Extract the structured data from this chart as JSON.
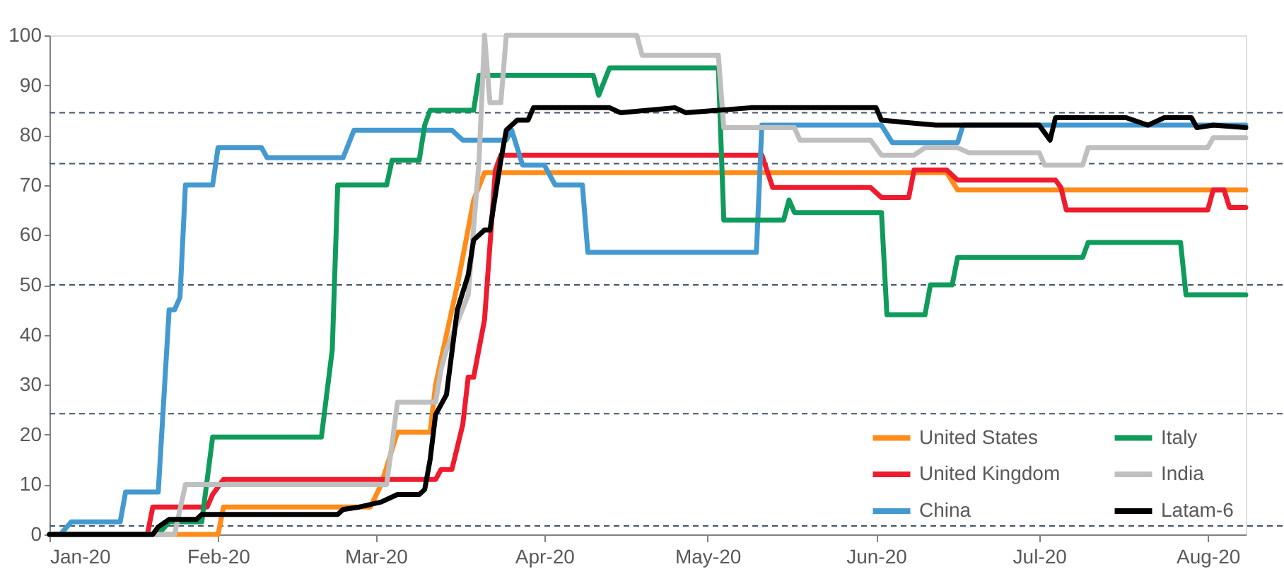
{
  "chart_data": {
    "type": "line",
    "xlim": [
      "2020-01-01",
      "2020-08-08"
    ],
    "ylim": [
      0,
      100
    ],
    "xticks": [
      {
        "value": "2020-01-01",
        "label": "Jan-20"
      },
      {
        "value": "2020-02-01",
        "label": "Feb-20"
      },
      {
        "value": "2020-03-01",
        "label": "Mar-20"
      },
      {
        "value": "2020-04-01",
        "label": "Apr-20"
      },
      {
        "value": "2020-05-01",
        "label": "May-20"
      },
      {
        "value": "2020-06-01",
        "label": "Jun-20"
      },
      {
        "value": "2020-07-01",
        "label": "Jul-20"
      },
      {
        "value": "2020-08-01",
        "label": "Aug-20"
      }
    ],
    "yticks": [
      0,
      10,
      20,
      30,
      40,
      50,
      60,
      70,
      80,
      90,
      100
    ],
    "legend": "bottom right",
    "ref_lines": [
      {
        "axis": "y",
        "value": 84.5,
        "color": "#44546a",
        "line_style": "dashed"
      },
      {
        "axis": "y",
        "value": 74.3,
        "color": "#44546a",
        "line_style": "dashed"
      },
      {
        "axis": "y",
        "value": 50,
        "color": "#44546a",
        "line_style": "dashed"
      },
      {
        "axis": "y",
        "value": 24.2,
        "color": "#44546a",
        "line_style": "dashed"
      },
      {
        "axis": "y",
        "value": 1.7,
        "color": "#44546a",
        "line_style": "dashed"
      }
    ],
    "series": [
      {
        "name": "United States",
        "color": "#ff8c1a",
        "x": [
          "2020-01-01",
          "2020-02-01",
          "2020-02-02",
          "2020-02-29",
          "2020-03-02",
          "2020-03-05",
          "2020-03-11",
          "2020-03-12",
          "2020-03-16",
          "2020-03-17",
          "2020-03-19",
          "2020-03-21",
          "2020-06-14",
          "2020-06-16",
          "2020-08-08"
        ],
        "values": [
          0,
          0,
          5.5,
          5.5,
          10,
          20.5,
          20.5,
          30,
          50,
          55.5,
          67,
          72.5,
          72.5,
          69,
          69
        ]
      },
      {
        "name": "United Kingdom",
        "color": "#ee1c2e",
        "x": [
          "2020-01-01",
          "2020-01-19",
          "2020-01-20",
          "2020-01-30",
          "2020-01-31",
          "2020-02-02",
          "2020-03-12",
          "2020-03-13",
          "2020-03-15",
          "2020-03-17",
          "2020-03-18",
          "2020-03-19",
          "2020-03-21",
          "2020-03-23",
          "2020-03-24",
          "2020-05-11",
          "2020-05-13",
          "2020-05-31",
          "2020-06-02",
          "2020-06-07",
          "2020-06-08",
          "2020-06-14",
          "2020-06-16",
          "2020-07-04",
          "2020-07-05",
          "2020-07-06",
          "2020-08-01",
          "2020-08-02",
          "2020-08-04",
          "2020-08-05",
          "2020-08-08"
        ],
        "values": [
          0,
          0,
          5.5,
          5.5,
          8,
          11,
          11,
          13,
          13,
          22,
          31.5,
          31.5,
          43,
          73,
          76,
          76,
          69.5,
          69.5,
          67.5,
          67.5,
          73,
          73,
          71,
          71,
          69.5,
          65,
          65,
          69,
          69,
          65.5,
          65.5
        ]
      },
      {
        "name": "China",
        "color": "#4499d0",
        "x": [
          "2020-01-01",
          "2020-01-03",
          "2020-01-05",
          "2020-01-14",
          "2020-01-15",
          "2020-01-21",
          "2020-01-23",
          "2020-01-24",
          "2020-01-25",
          "2020-01-26",
          "2020-01-31",
          "2020-02-01",
          "2020-02-09",
          "2020-02-10",
          "2020-02-24",
          "2020-02-26",
          "2020-03-15",
          "2020-03-17",
          "2020-03-25",
          "2020-03-26",
          "2020-03-28",
          "2020-04-01",
          "2020-04-03",
          "2020-04-08",
          "2020-04-09",
          "2020-05-10",
          "2020-05-11",
          "2020-06-02",
          "2020-06-04",
          "2020-06-16",
          "2020-06-17",
          "2020-08-08"
        ],
        "values": [
          0,
          0,
          2.5,
          2.5,
          8.5,
          8.5,
          45,
          45,
          47.5,
          70,
          70,
          77.5,
          77.5,
          75.5,
          75.5,
          81,
          81,
          79,
          79,
          81,
          74,
          74,
          70,
          70,
          56.5,
          56.5,
          82,
          82,
          78.5,
          78.5,
          82,
          82
        ]
      },
      {
        "name": "Italy",
        "color": "#0f9b5c",
        "x": [
          "2020-01-01",
          "2020-01-21",
          "2020-01-23",
          "2020-01-29",
          "2020-01-31",
          "2020-02-20",
          "2020-02-22",
          "2020-02-23",
          "2020-03-03",
          "2020-03-04",
          "2020-03-09",
          "2020-03-10",
          "2020-03-11",
          "2020-03-19",
          "2020-03-20",
          "2020-04-10",
          "2020-04-11",
          "2020-04-13",
          "2020-05-03",
          "2020-05-04",
          "2020-05-15",
          "2020-05-16",
          "2020-05-17",
          "2020-06-02",
          "2020-06-03",
          "2020-06-10",
          "2020-06-11",
          "2020-06-15",
          "2020-06-16",
          "2020-07-09",
          "2020-07-10",
          "2020-07-27",
          "2020-07-28",
          "2020-08-08"
        ],
        "values": [
          0,
          0,
          2.5,
          2.5,
          19.5,
          19.5,
          37,
          70,
          70,
          75,
          75,
          82,
          85,
          85,
          92,
          92,
          88,
          93.5,
          93.5,
          63,
          63,
          67,
          64.5,
          64.5,
          44,
          44,
          50,
          50,
          55.5,
          55.5,
          58.5,
          58.5,
          48,
          48
        ]
      },
      {
        "name": "India",
        "color": "#bfbfbf",
        "x": [
          "2020-01-01",
          "2020-01-24",
          "2020-01-26",
          "2020-03-03",
          "2020-03-05",
          "2020-03-12",
          "2020-03-13",
          "2020-03-14",
          "2020-03-18",
          "2020-03-20",
          "2020-03-21",
          "2020-03-22",
          "2020-03-24",
          "2020-03-25",
          "2020-04-18",
          "2020-04-19",
          "2020-05-03",
          "2020-05-04",
          "2020-05-17",
          "2020-05-18",
          "2020-05-31",
          "2020-06-02",
          "2020-06-08",
          "2020-06-10",
          "2020-06-16",
          "2020-06-18",
          "2020-07-01",
          "2020-07-02",
          "2020-07-09",
          "2020-07-10",
          "2020-08-01",
          "2020-08-02",
          "2020-08-08"
        ],
        "values": [
          0,
          0,
          10,
          10,
          26.5,
          26.5,
          33,
          37,
          48,
          75,
          100,
          86.5,
          86.5,
          100,
          100,
          96,
          96,
          81.5,
          81.5,
          79,
          79,
          76,
          76,
          77.5,
          77.5,
          76.5,
          76.5,
          74,
          74,
          77.5,
          77.5,
          79.5,
          79.5
        ]
      },
      {
        "name": "Latam-6",
        "color": "#000000",
        "x": [
          "2020-01-01",
          "2020-01-20",
          "2020-01-21",
          "2020-01-23",
          "2020-01-28",
          "2020-01-29",
          "2020-02-23",
          "2020-02-24",
          "2020-02-27",
          "2020-03-02",
          "2020-03-05",
          "2020-03-09",
          "2020-03-10",
          "2020-03-11",
          "2020-03-12",
          "2020-03-14",
          "2020-03-16",
          "2020-03-18",
          "2020-03-19",
          "2020-03-21",
          "2020-03-22",
          "2020-03-24",
          "2020-03-25",
          "2020-03-27",
          "2020-03-29",
          "2020-03-30",
          "2020-04-13",
          "2020-04-15",
          "2020-04-25",
          "2020-04-27",
          "2020-05-09",
          "2020-06-01",
          "2020-06-02",
          "2020-06-12",
          "2020-07-01",
          "2020-07-03",
          "2020-07-04",
          "2020-07-17",
          "2020-07-21",
          "2020-07-24",
          "2020-07-29",
          "2020-07-30",
          "2020-08-02",
          "2020-08-08"
        ],
        "values": [
          0,
          0,
          1.5,
          3,
          3,
          4,
          4,
          5,
          5.5,
          6.5,
          8,
          8,
          9,
          15,
          24,
          28,
          45,
          52,
          59,
          61,
          61,
          75,
          81,
          83,
          83,
          85.5,
          85.5,
          84.5,
          85.5,
          84.5,
          85.5,
          85.5,
          83,
          82,
          82,
          79,
          83.5,
          83.5,
          82,
          83.5,
          83.5,
          81.5,
          82,
          81.5
        ]
      }
    ]
  }
}
